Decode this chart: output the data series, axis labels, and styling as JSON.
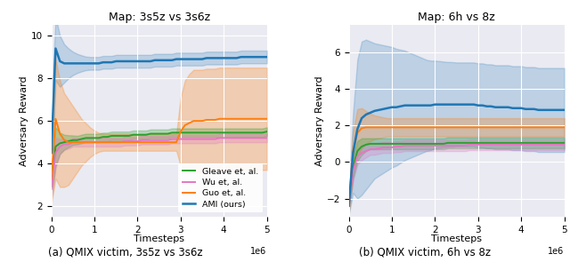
{
  "left_title": "Map: 3s5z vs 3s6z",
  "right_title": "Map: 6h vs 8z",
  "ylabel": "Adversary Reward",
  "xlabel": "Timesteps",
  "left_ylim": [
    1.5,
    10.5
  ],
  "left_yticks": [
    2,
    4,
    6,
    8,
    10
  ],
  "right_ylim": [
    -3.0,
    7.5
  ],
  "right_yticks": [
    -2,
    0,
    2,
    4,
    6
  ],
  "colors": {
    "gleave": "#2ca02c",
    "wu": "#e377c2",
    "guo": "#ff7f0e",
    "ami": "#1f77b4"
  },
  "legend_labels": [
    "Gleave et, al.",
    "Wu et, al.",
    "Guo et, al.",
    "AMI (ours)"
  ],
  "caption_left": "(a) QMIX victim, 3s5z vs 3s6z",
  "caption_right": "(b) QMIX victim, 6h vs 8z",
  "left": {
    "gleave_mean": [
      3.0,
      4.8,
      4.95,
      5.0,
      5.05,
      5.1,
      5.1,
      5.15,
      5.2,
      5.2,
      5.2,
      5.2,
      5.25,
      5.25,
      5.3,
      5.3,
      5.3,
      5.3,
      5.3,
      5.35,
      5.35,
      5.35,
      5.35,
      5.4,
      5.4,
      5.4,
      5.4,
      5.4,
      5.45,
      5.45,
      5.45,
      5.45,
      5.45,
      5.45,
      5.45,
      5.45,
      5.45,
      5.45,
      5.45,
      5.45,
      5.45,
      5.45,
      5.45,
      5.45,
      5.45,
      5.45,
      5.45,
      5.45,
      5.45,
      5.45,
      5.5
    ],
    "gleave_std": [
      0.6,
      0.9,
      0.5,
      0.35,
      0.28,
      0.22,
      0.2,
      0.2,
      0.2,
      0.2,
      0.2,
      0.2,
      0.2,
      0.2,
      0.2,
      0.2,
      0.2,
      0.2,
      0.2,
      0.2,
      0.2,
      0.2,
      0.2,
      0.2,
      0.2,
      0.2,
      0.2,
      0.2,
      0.2,
      0.2,
      0.2,
      0.2,
      0.2,
      0.2,
      0.2,
      0.2,
      0.2,
      0.2,
      0.2,
      0.2,
      0.2,
      0.2,
      0.2,
      0.2,
      0.2,
      0.2,
      0.2,
      0.2,
      0.2,
      0.2,
      0.2
    ],
    "wu_mean": [
      2.8,
      4.5,
      4.8,
      4.9,
      4.9,
      5.0,
      5.0,
      5.0,
      5.0,
      5.0,
      5.0,
      5.0,
      5.0,
      5.0,
      5.0,
      5.0,
      5.0,
      5.05,
      5.05,
      5.05,
      5.05,
      5.1,
      5.1,
      5.1,
      5.1,
      5.1,
      5.1,
      5.1,
      5.15,
      5.15,
      5.15,
      5.15,
      5.15,
      5.15,
      5.15,
      5.15,
      5.15,
      5.15,
      5.15,
      5.2,
      5.2,
      5.2,
      5.2,
      5.2,
      5.2,
      5.2,
      5.2,
      5.2,
      5.2,
      5.2,
      5.2
    ],
    "wu_std": [
      0.5,
      0.7,
      0.35,
      0.25,
      0.2,
      0.2,
      0.2,
      0.2,
      0.2,
      0.2,
      0.2,
      0.2,
      0.2,
      0.2,
      0.2,
      0.2,
      0.2,
      0.2,
      0.2,
      0.2,
      0.2,
      0.2,
      0.2,
      0.2,
      0.2,
      0.2,
      0.2,
      0.2,
      0.2,
      0.2,
      0.2,
      0.2,
      0.2,
      0.2,
      0.2,
      0.2,
      0.2,
      0.2,
      0.2,
      0.2,
      0.2,
      0.2,
      0.2,
      0.2,
      0.2,
      0.2,
      0.2,
      0.2,
      0.2,
      0.2,
      0.2
    ],
    "guo_mean": [
      3.3,
      6.1,
      5.4,
      5.1,
      5.0,
      5.0,
      5.0,
      5.0,
      5.0,
      5.0,
      5.0,
      5.0,
      5.0,
      5.0,
      5.0,
      5.0,
      5.0,
      5.0,
      5.0,
      5.0,
      5.0,
      5.0,
      5.0,
      5.0,
      5.0,
      5.0,
      5.0,
      5.0,
      5.0,
      5.0,
      5.5,
      5.8,
      5.9,
      6.0,
      6.0,
      6.0,
      6.05,
      6.05,
      6.05,
      6.1,
      6.1,
      6.1,
      6.1,
      6.1,
      6.1,
      6.1,
      6.1,
      6.1,
      6.1,
      6.1,
      6.1
    ],
    "guo_std": [
      1.2,
      2.8,
      2.5,
      2.2,
      2.0,
      1.7,
      1.4,
      1.1,
      0.9,
      0.7,
      0.55,
      0.45,
      0.4,
      0.4,
      0.4,
      0.4,
      0.4,
      0.4,
      0.4,
      0.4,
      0.4,
      0.4,
      0.4,
      0.4,
      0.4,
      0.4,
      0.4,
      0.4,
      0.4,
      0.4,
      1.6,
      2.1,
      2.3,
      2.4,
      2.4,
      2.4,
      2.4,
      2.4,
      2.4,
      2.4,
      2.4,
      2.4,
      2.4,
      2.4,
      2.4,
      2.4,
      2.4,
      2.4,
      2.4,
      2.4,
      2.4
    ],
    "ami_mean": [
      4.5,
      9.4,
      8.8,
      8.7,
      8.7,
      8.7,
      8.7,
      8.7,
      8.7,
      8.7,
      8.7,
      8.7,
      8.75,
      8.75,
      8.75,
      8.8,
      8.8,
      8.8,
      8.8,
      8.8,
      8.8,
      8.8,
      8.8,
      8.8,
      8.85,
      8.85,
      8.85,
      8.85,
      8.85,
      8.9,
      8.9,
      8.9,
      8.9,
      8.9,
      8.9,
      8.9,
      8.95,
      8.95,
      8.95,
      8.95,
      8.95,
      8.95,
      8.95,
      8.95,
      9.0,
      9.0,
      9.0,
      9.0,
      9.0,
      9.0,
      9.0
    ],
    "ami_std": [
      2.0,
      1.5,
      1.2,
      0.9,
      0.7,
      0.55,
      0.45,
      0.38,
      0.32,
      0.3,
      0.3,
      0.3,
      0.3,
      0.3,
      0.3,
      0.3,
      0.3,
      0.3,
      0.3,
      0.3,
      0.3,
      0.3,
      0.3,
      0.3,
      0.3,
      0.3,
      0.3,
      0.3,
      0.3,
      0.3,
      0.3,
      0.3,
      0.3,
      0.3,
      0.3,
      0.3,
      0.3,
      0.3,
      0.3,
      0.3,
      0.3,
      0.3,
      0.3,
      0.3,
      0.3,
      0.3,
      0.3,
      0.3,
      0.3,
      0.3,
      0.3
    ]
  },
  "right": {
    "gleave_mean": [
      -2.4,
      -0.3,
      0.6,
      0.85,
      0.95,
      1.0,
      1.0,
      1.0,
      1.0,
      1.0,
      1.0,
      1.0,
      1.0,
      1.0,
      1.0,
      1.0,
      1.0,
      1.0,
      1.0,
      1.0,
      1.0,
      1.0,
      1.0,
      1.05,
      1.05,
      1.05,
      1.05,
      1.05,
      1.05,
      1.05,
      1.05,
      1.05,
      1.05,
      1.05,
      1.05,
      1.05,
      1.05,
      1.05,
      1.05,
      1.05,
      1.05,
      1.05,
      1.05,
      1.05,
      1.05,
      1.05,
      1.05,
      1.05,
      1.05,
      1.05,
      1.05
    ],
    "gleave_std": [
      0.3,
      0.6,
      0.55,
      0.45,
      0.35,
      0.3,
      0.3,
      0.3,
      0.3,
      0.3,
      0.3,
      0.3,
      0.3,
      0.3,
      0.3,
      0.3,
      0.3,
      0.3,
      0.3,
      0.3,
      0.3,
      0.3,
      0.3,
      0.3,
      0.3,
      0.3,
      0.3,
      0.3,
      0.3,
      0.3,
      0.3,
      0.3,
      0.3,
      0.3,
      0.3,
      0.3,
      0.3,
      0.3,
      0.3,
      0.3,
      0.3,
      0.3,
      0.3,
      0.3,
      0.3,
      0.3,
      0.3,
      0.3,
      0.3,
      0.3,
      0.3
    ],
    "wu_mean": [
      -2.4,
      -0.5,
      0.3,
      0.5,
      0.6,
      0.7,
      0.7,
      0.75,
      0.8,
      0.8,
      0.8,
      0.85,
      0.85,
      0.9,
      0.9,
      0.9,
      0.9,
      0.9,
      0.9,
      0.9,
      0.9,
      0.9,
      0.9,
      0.9,
      0.9,
      0.9,
      0.9,
      0.9,
      0.95,
      0.95,
      0.95,
      0.95,
      0.95,
      0.95,
      0.95,
      0.95,
      0.95,
      0.95,
      0.95,
      0.95,
      0.95,
      0.95,
      0.95,
      0.95,
      0.95,
      0.95,
      0.95,
      0.95,
      0.95,
      0.95,
      0.95
    ],
    "wu_std": [
      0.3,
      0.5,
      0.45,
      0.4,
      0.35,
      0.3,
      0.3,
      0.3,
      0.3,
      0.3,
      0.3,
      0.3,
      0.3,
      0.3,
      0.3,
      0.3,
      0.3,
      0.3,
      0.3,
      0.3,
      0.3,
      0.3,
      0.3,
      0.3,
      0.3,
      0.3,
      0.3,
      0.3,
      0.3,
      0.3,
      0.3,
      0.3,
      0.3,
      0.3,
      0.3,
      0.3,
      0.3,
      0.3,
      0.3,
      0.3,
      0.3,
      0.3,
      0.3,
      0.3,
      0.3,
      0.3,
      0.3,
      0.3,
      0.3,
      0.3,
      0.3
    ],
    "guo_mean": [
      -2.4,
      0.6,
      1.6,
      1.85,
      1.9,
      1.9,
      1.9,
      1.9,
      1.9,
      1.9,
      1.9,
      1.9,
      1.9,
      1.9,
      1.9,
      1.9,
      1.9,
      1.9,
      1.9,
      1.9,
      1.9,
      1.9,
      1.9,
      1.9,
      1.9,
      1.9,
      1.9,
      1.9,
      1.9,
      1.9,
      1.9,
      1.9,
      1.9,
      1.9,
      1.9,
      1.9,
      1.9,
      1.9,
      1.9,
      1.9,
      1.9,
      1.9,
      1.9,
      1.9,
      1.9,
      1.9,
      1.9,
      1.9,
      1.9,
      1.9,
      1.9
    ],
    "guo_std": [
      0.5,
      1.1,
      1.3,
      1.1,
      0.9,
      0.75,
      0.65,
      0.6,
      0.55,
      0.5,
      0.5,
      0.5,
      0.5,
      0.5,
      0.5,
      0.5,
      0.5,
      0.5,
      0.5,
      0.5,
      0.5,
      0.5,
      0.5,
      0.5,
      0.5,
      0.5,
      0.5,
      0.5,
      0.5,
      0.5,
      0.5,
      0.5,
      0.5,
      0.5,
      0.5,
      0.5,
      0.5,
      0.5,
      0.5,
      0.5,
      0.5,
      0.5,
      0.5,
      0.5,
      0.5,
      0.5,
      0.5,
      0.5,
      0.5,
      0.5,
      0.5
    ],
    "ami_mean": [
      -2.4,
      0.5,
      1.8,
      2.4,
      2.6,
      2.7,
      2.8,
      2.85,
      2.9,
      2.95,
      3.0,
      3.0,
      3.05,
      3.1,
      3.1,
      3.1,
      3.1,
      3.1,
      3.1,
      3.1,
      3.15,
      3.15,
      3.15,
      3.15,
      3.15,
      3.15,
      3.15,
      3.15,
      3.15,
      3.15,
      3.1,
      3.1,
      3.05,
      3.05,
      3.0,
      3.0,
      3.0,
      3.0,
      2.95,
      2.95,
      2.95,
      2.9,
      2.9,
      2.9,
      2.85,
      2.85,
      2.85,
      2.85,
      2.85,
      2.85,
      2.85
    ],
    "ami_std": [
      0.5,
      2.2,
      3.8,
      4.2,
      4.1,
      3.9,
      3.7,
      3.6,
      3.5,
      3.4,
      3.3,
      3.2,
      3.1,
      3.0,
      2.9,
      2.8,
      2.7,
      2.6,
      2.5,
      2.45,
      2.4,
      2.38,
      2.35,
      2.33,
      2.32,
      2.3,
      2.3,
      2.3,
      2.3,
      2.3,
      2.3,
      2.3,
      2.3,
      2.3,
      2.3,
      2.3,
      2.3,
      2.3,
      2.3,
      2.3,
      2.3,
      2.3,
      2.3,
      2.3,
      2.3,
      2.3,
      2.3,
      2.3,
      2.3,
      2.3,
      2.3
    ]
  }
}
